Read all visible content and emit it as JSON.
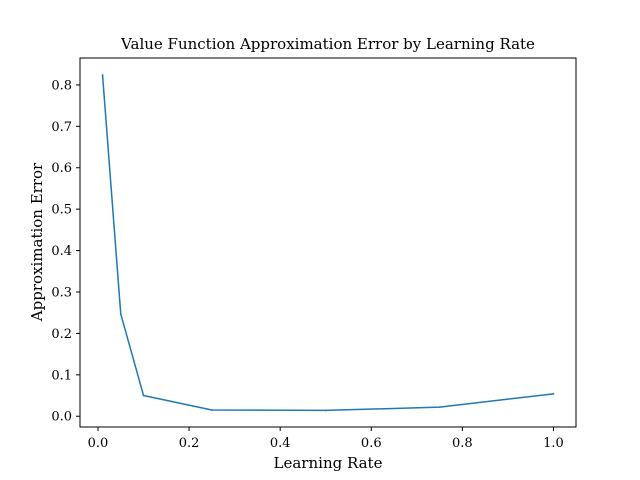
{
  "chart_data": {
    "type": "line",
    "title": "Value Function Approximation Error by Learning Rate",
    "xlabel": "Learning Rate",
    "ylabel": "Approximation Error",
    "xlim": [
      -0.0395,
      1.0495
    ],
    "ylim": [
      -0.026,
      0.865
    ],
    "xticks": [
      0.0,
      0.2,
      0.4,
      0.6,
      0.8,
      1.0
    ],
    "xtick_labels": [
      "0.0",
      "0.2",
      "0.4",
      "0.6",
      "0.8",
      "1.0"
    ],
    "yticks": [
      0.0,
      0.1,
      0.2,
      0.3,
      0.4,
      0.5,
      0.6,
      0.7,
      0.8
    ],
    "ytick_labels": [
      "0.0",
      "0.1",
      "0.2",
      "0.3",
      "0.4",
      "0.5",
      "0.6",
      "0.7",
      "0.8"
    ],
    "grid": false,
    "series": [
      {
        "color": "#1f77b4",
        "x": [
          0.01,
          0.05,
          0.1,
          0.25,
          0.5,
          0.75,
          1.0
        ],
        "y": [
          0.824,
          0.247,
          0.05,
          0.015,
          0.014,
          0.022,
          0.054
        ]
      }
    ]
  }
}
